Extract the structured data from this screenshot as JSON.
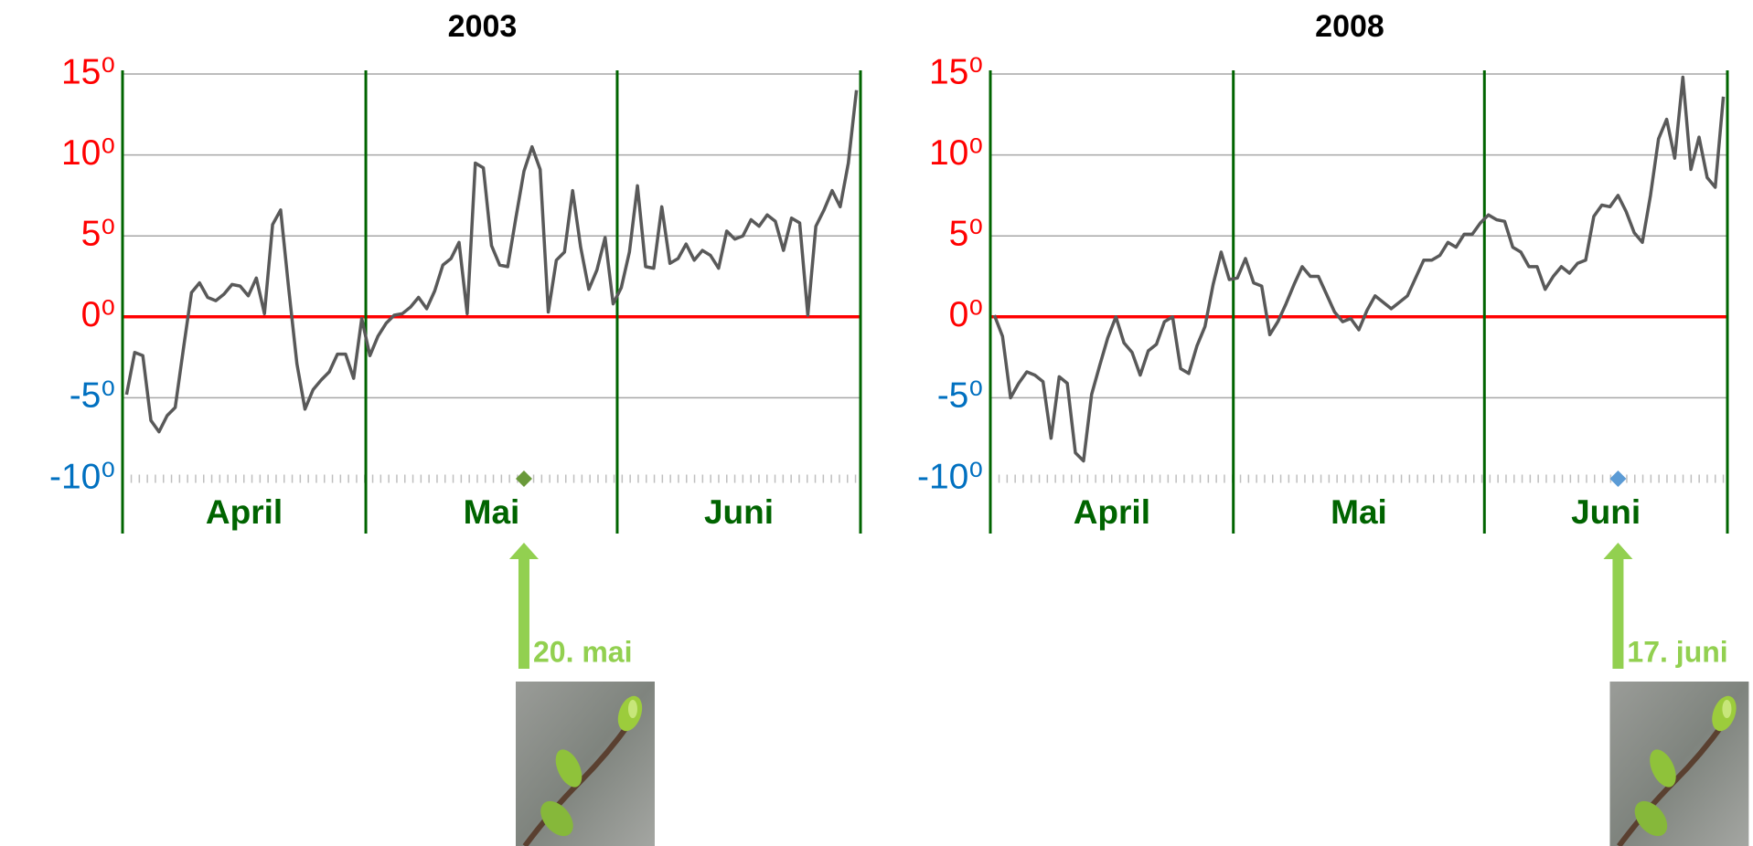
{
  "chart_data": [
    {
      "type": "line",
      "title": "2003",
      "xlim": [
        0,
        91
      ],
      "month_lines": [
        0,
        30,
        61,
        91
      ],
      "month_labels": [
        {
          "value": 15,
          "label": "April"
        },
        {
          "value": 45.5,
          "label": "Mai"
        },
        {
          "value": 76,
          "label": "Juni"
        }
      ],
      "ylim": [
        -10,
        15
      ],
      "yticks": [
        {
          "value": -10,
          "label": "-10⁰"
        },
        {
          "value": -5,
          "label": "-5⁰"
        },
        {
          "value": 0,
          "label": "0⁰"
        },
        {
          "value": 5,
          "label": "5⁰"
        },
        {
          "value": 10,
          "label": "10⁰"
        },
        {
          "value": 15,
          "label": "15⁰"
        }
      ],
      "tick_label_colors": {
        "nonnegative": "#ff0000",
        "negative": "#0070c0"
      },
      "zero_line_color": "#ff0000",
      "month_line_color": "#006400",
      "series": [
        {
          "color": "#595959",
          "values": [
            -4.8,
            -2.2,
            -2.4,
            -6.4,
            -7.1,
            -6.1,
            -5.6,
            -2.0,
            1.5,
            2.1,
            1.2,
            1.0,
            1.4,
            2.0,
            1.9,
            1.3,
            2.4,
            0.2,
            5.7,
            6.6,
            1.7,
            -2.9,
            -5.7,
            -4.5,
            -3.9,
            -3.4,
            -2.3,
            -2.3,
            -3.8,
            -0.1,
            -2.4,
            -1.2,
            -0.4,
            0.1,
            0.2,
            0.6,
            1.2,
            0.5,
            1.6,
            3.2,
            3.6,
            4.6,
            0.2,
            9.5,
            9.2,
            4.4,
            3.2,
            3.1,
            6.1,
            9.0,
            10.5,
            9.1,
            0.3,
            3.5,
            4.0,
            7.8,
            4.3,
            1.7,
            2.9,
            4.9,
            0.8,
            1.8,
            4.0,
            8.1,
            3.1,
            3.0,
            6.8,
            3.3,
            3.6,
            4.5,
            3.5,
            4.1,
            3.8,
            3.0,
            5.3,
            4.8,
            5.0,
            6.0,
            5.6,
            6.3,
            5.9,
            4.1,
            6.1,
            5.8,
            0.1,
            5.6,
            6.6,
            7.8,
            6.8,
            9.5,
            14.0
          ]
        }
      ],
      "annotation": {
        "x": 49.5,
        "label": "20. mai",
        "marker_color": "#6a9a3a",
        "arrow_color": "#92d050"
      }
    },
    {
      "type": "line",
      "title": "2008",
      "xlim": [
        0,
        91
      ],
      "month_lines": [
        0,
        30,
        61,
        91
      ],
      "month_labels": [
        {
          "value": 15,
          "label": "April"
        },
        {
          "value": 45.5,
          "label": "Mai"
        },
        {
          "value": 76,
          "label": "Juni"
        }
      ],
      "ylim": [
        -10,
        15
      ],
      "yticks": [
        {
          "value": -10,
          "label": "-10⁰"
        },
        {
          "value": -5,
          "label": "-5⁰"
        },
        {
          "value": 0,
          "label": "0⁰"
        },
        {
          "value": 5,
          "label": "5⁰"
        },
        {
          "value": 10,
          "label": "10⁰"
        },
        {
          "value": 15,
          "label": "15⁰"
        }
      ],
      "tick_label_colors": {
        "nonnegative": "#ff0000",
        "negative": "#0070c0"
      },
      "zero_line_color": "#ff0000",
      "month_line_color": "#006400",
      "series": [
        {
          "color": "#595959",
          "values": [
            0.1,
            -1.2,
            -5.0,
            -4.1,
            -3.4,
            -3.6,
            -4.0,
            -7.5,
            -3.7,
            -4.1,
            -8.4,
            -8.9,
            -4.8,
            -3.0,
            -1.3,
            0.0,
            -1.6,
            -2.2,
            -3.6,
            -2.1,
            -1.7,
            -0.3,
            0.0,
            -3.2,
            -3.5,
            -1.8,
            -0.6,
            2.0,
            4.0,
            2.3,
            2.4,
            3.6,
            2.1,
            1.9,
            -1.1,
            -0.3,
            0.8,
            2.0,
            3.1,
            2.5,
            2.5,
            1.4,
            0.3,
            -0.3,
            -0.1,
            -0.8,
            0.4,
            1.3,
            0.9,
            0.5,
            0.9,
            1.3,
            2.4,
            3.5,
            3.5,
            3.8,
            4.6,
            4.3,
            5.1,
            5.1,
            5.8,
            6.3,
            6.0,
            5.9,
            4.3,
            4.0,
            3.1,
            3.1,
            1.7,
            2.5,
            3.1,
            2.7,
            3.3,
            3.5,
            6.2,
            6.9,
            6.8,
            7.5,
            6.5,
            5.2,
            4.6,
            7.5,
            11.0,
            12.2,
            9.8,
            14.8,
            9.1,
            11.1,
            8.6,
            8.0,
            13.6
          ]
        }
      ],
      "annotation": {
        "x": 77.5,
        "label": "17. juni",
        "marker_color": "#5b9bd5",
        "arrow_color": "#92d050"
      }
    }
  ]
}
